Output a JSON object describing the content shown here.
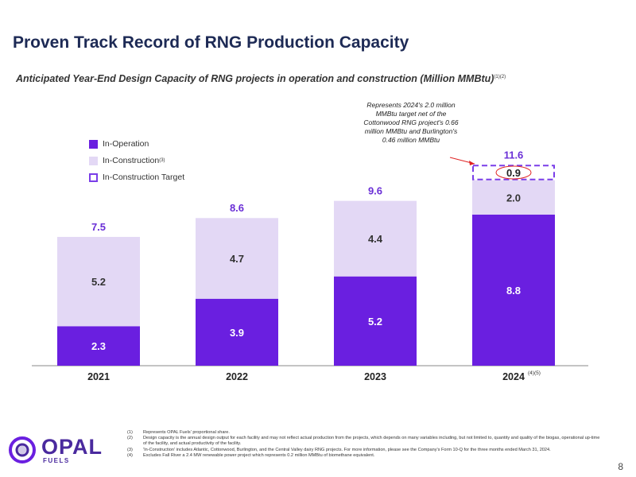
{
  "header": {
    "title": "Proven Track Record of RNG Production Capacity",
    "subtitle": "Anticipated Year-End Design Capacity of RNG projects in operation and construction (Million MMBtu)",
    "subtitle_sup": "(1)(2)"
  },
  "annotation": "Represents 2024's 2.0 million MMBtu target net of the Cottonwood RNG project's 0.66 million MMBtu and Burlington's 0.46 million MMBtu",
  "legend": {
    "in_operation": "In-Operation",
    "in_construction": "In-Construction",
    "in_construction_sup": "(3)",
    "target": "In-Construction Target"
  },
  "colors": {
    "in_operation": "#6a1fe0",
    "in_construction": "#e3d8f5",
    "target_border": "#7a3ee8",
    "total_label": "#6a2fd6",
    "title": "#1d2a55"
  },
  "chart_data": {
    "type": "bar",
    "stacked": true,
    "categories": [
      "2021",
      "2022",
      "2023",
      "2024"
    ],
    "category_sup": [
      "",
      "",
      "",
      "(4)(5)"
    ],
    "series": [
      {
        "name": "In-Operation",
        "values": [
          2.3,
          3.9,
          5.2,
          8.8
        ]
      },
      {
        "name": "In-Construction",
        "values": [
          5.2,
          4.7,
          4.4,
          2.0
        ]
      },
      {
        "name": "In-Construction Target",
        "values": [
          null,
          null,
          null,
          0.9
        ]
      }
    ],
    "totals": [
      7.5,
      8.6,
      9.6,
      11.6
    ],
    "ylim": [
      0,
      12
    ],
    "grid": false,
    "legend_position": "top-left"
  },
  "footnotes": [
    {
      "num": "(1)",
      "text": "Represents OPAL Fuels' proportional share."
    },
    {
      "num": "(2)",
      "text": "Design capacity is the annual design output for each facility and may not reflect actual production from the projects, which depends on many variables including, but not limited to, quantity and quality of the biogas, operational up-time of the facility, and actual productivity of the facility."
    },
    {
      "num": "(3)",
      "text": "'In-Construction' includes Atlantic, Cottonwood, Burlington, and the Central Valley dairy RNG projects. For more information, please see the Company's Form 10-Q for the three months ended March 31, 2024."
    },
    {
      "num": "(4)",
      "text": "Excludes Fall River a 2.4 MW renewable power project which represents 0.2 million MMBtu of biomethane equivalent."
    }
  ],
  "logo": {
    "main": "OPAL",
    "sub": "FUELS"
  },
  "page_number": "8"
}
